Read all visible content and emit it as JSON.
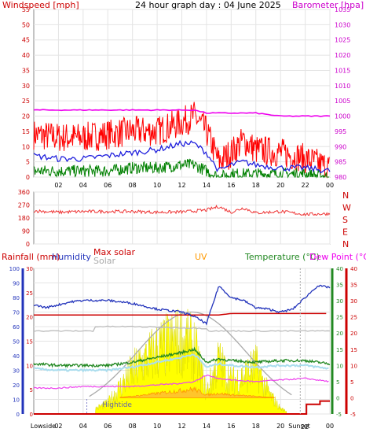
{
  "title": "24 hour graph day : 04 June 2025",
  "top_panel": {
    "left_label": "Windspeed [mph]",
    "right_label": "Barometer [hpa]",
    "left_ticks": [
      "55",
      "50",
      "45",
      "40",
      "35",
      "30",
      "25",
      "20",
      "15",
      "10",
      "5",
      "0"
    ],
    "right_ticks": [
      "1035",
      "1030",
      "1025",
      "1020",
      "1015",
      "1010",
      "1005",
      "1000",
      "995",
      "990",
      "985",
      "980"
    ],
    "x_ticks": [
      "02",
      "04",
      "06",
      "08",
      "10",
      "12",
      "14",
      "16",
      "18",
      "20",
      "22",
      "00"
    ]
  },
  "dir_panel": {
    "left_ticks": [
      "360",
      "270",
      "180",
      "90",
      "0"
    ],
    "right_letters": [
      "N",
      "W",
      "S",
      "E",
      "N"
    ]
  },
  "bottom_panel": {
    "labels": {
      "rainfall": "Rainfall (mm)",
      "humidity": "Humidity",
      "max_solar": "Max solar",
      "solar": "Solar",
      "uv": "UV",
      "temperature": "Temperature (°C)",
      "dew_point": "Dew Point (°C)"
    },
    "humidity_ticks": [
      "100",
      "90",
      "80",
      "70",
      "60",
      "50",
      "40",
      "30",
      "20",
      "10",
      "0"
    ],
    "rain_ticks": [
      "30",
      "25",
      "20",
      "15",
      "10",
      "5",
      "0"
    ],
    "temp_ticks": [
      "40",
      "35",
      "30",
      "25",
      "20",
      "15",
      "10",
      "5",
      "0",
      "-5"
    ],
    "dew_ticks": [
      "40",
      "35",
      "30",
      "25",
      "20",
      "15",
      "10",
      "5",
      "0",
      "-5"
    ],
    "x_ticks": [
      "Lowside",
      "02",
      "04",
      "06",
      "08",
      "10",
      "12",
      "14",
      "16",
      "18",
      "20",
      "Sunset",
      "00"
    ],
    "annotations": {
      "hightide": "Hightide",
      "sunset_num": "22"
    }
  },
  "colors": {
    "wind": "#ff0000",
    "gust_avg": "#2020dd",
    "wind_avg": "#008000",
    "barometer": "#ee00ee",
    "direction": "#ee3333",
    "humidity": "#2233bb",
    "temperature": "#228822",
    "dew_point": "#ee44ee",
    "solar": "#ffff00",
    "max_solar": "#aaaaaa",
    "uv": "#ff9900",
    "rain": "#cc0000",
    "title_color": "#000000",
    "left_axis": "#cc0000",
    "right_axis": "#cc00cc"
  },
  "chart_data": [
    {
      "type": "line",
      "title": "24 hour graph day : 04 June 2025",
      "ylabel": "Windspeed [mph]",
      "y2label": "Barometer [hpa]",
      "ylim": [
        0,
        55
      ],
      "y2lim": [
        980,
        1035
      ],
      "x": [
        0,
        2,
        4,
        6,
        8,
        10,
        12,
        13,
        14,
        15,
        16,
        17,
        18,
        20,
        22,
        24
      ],
      "series": [
        {
          "name": "Windspeed [mph]",
          "values": [
            14,
            13,
            13,
            14,
            15,
            15,
            18,
            20,
            15,
            5,
            8,
            12,
            9,
            8,
            6,
            3
          ]
        },
        {
          "name": "Windspeed [mph] avg",
          "values": [
            7,
            6,
            6,
            7,
            8,
            9,
            11,
            11,
            8,
            2,
            4,
            5,
            4,
            3,
            3,
            2
          ]
        },
        {
          "name": "Windspeed [mph] low",
          "values": [
            2,
            2,
            2,
            2,
            3,
            3,
            4,
            4,
            2,
            0,
            1,
            1,
            1,
            1,
            1,
            0
          ]
        },
        {
          "name": "Barometer [hpa]",
          "values": [
            1002,
            1002,
            1002,
            1002,
            1002,
            1002,
            1002,
            1002,
            1001,
            1001,
            1001,
            1001,
            1001,
            1000,
            1000,
            1000
          ]
        }
      ]
    },
    {
      "type": "line",
      "ylabel": "",
      "ylim": [
        0,
        360
      ],
      "x": [
        0,
        2,
        4,
        6,
        8,
        10,
        12,
        14,
        15,
        16,
        17,
        18,
        20,
        22,
        24
      ],
      "series": [
        {
          "name": "direction",
          "values": [
            230,
            220,
            225,
            225,
            225,
            220,
            222,
            235,
            260,
            220,
            250,
            215,
            225,
            205,
            210
          ]
        }
      ]
    },
    {
      "type": "line",
      "ylim": [
        0,
        100
      ],
      "x": [
        0,
        1,
        2,
        3,
        4,
        6,
        8,
        10,
        12,
        13,
        14,
        15,
        16,
        17,
        18,
        19,
        20,
        21,
        22,
        23,
        24
      ],
      "series": [
        {
          "name": "Humidity",
          "values": [
            75,
            73,
            75,
            77,
            78,
            78,
            76,
            72,
            70,
            67,
            62,
            88,
            80,
            78,
            73,
            72,
            70,
            72,
            80,
            88,
            87
          ]
        },
        {
          "name": "Max solar",
          "values": [
            68,
            68,
            68,
            68,
            68,
            68,
            68,
            68,
            68,
            68,
            68,
            68,
            69,
            69,
            69,
            69,
            69,
            69,
            69,
            69,
            69
          ]
        },
        {
          "name": "Solar",
          "values": [
            0,
            0,
            0,
            0,
            0,
            10,
            40,
            60,
            70,
            62,
            20,
            50,
            30,
            35,
            45,
            20,
            5,
            0,
            0,
            0,
            0
          ]
        }
      ]
    },
    {
      "type": "line",
      "ylim": [
        -5,
        40
      ],
      "x": [
        0,
        2,
        4,
        6,
        8,
        10,
        12,
        13,
        14,
        15,
        16,
        18,
        20,
        22,
        24
      ],
      "series": [
        {
          "name": "Temperature (°C)",
          "values": [
            10.5,
            10,
            10,
            10,
            11,
            12.5,
            14,
            15,
            11,
            12,
            11.5,
            11,
            11.5,
            11.5,
            10.5
          ]
        },
        {
          "name": "Dew Point (°C)",
          "values": [
            3,
            3,
            3.5,
            3.5,
            3.5,
            4,
            4.5,
            5,
            7,
            6,
            5.5,
            5,
            5.5,
            6,
            5
          ]
        },
        {
          "name": "UV",
          "values": [
            0,
            0,
            0,
            0,
            0.5,
            1.5,
            2.5,
            3,
            1,
            1.5,
            1,
            0.5,
            0,
            0,
            0
          ]
        },
        {
          "name": "Rainfall (mm)",
          "values": [
            0,
            0,
            0,
            0,
            0,
            0,
            0,
            0,
            0,
            0,
            0,
            0,
            0,
            0.5,
            1
          ]
        }
      ]
    }
  ]
}
